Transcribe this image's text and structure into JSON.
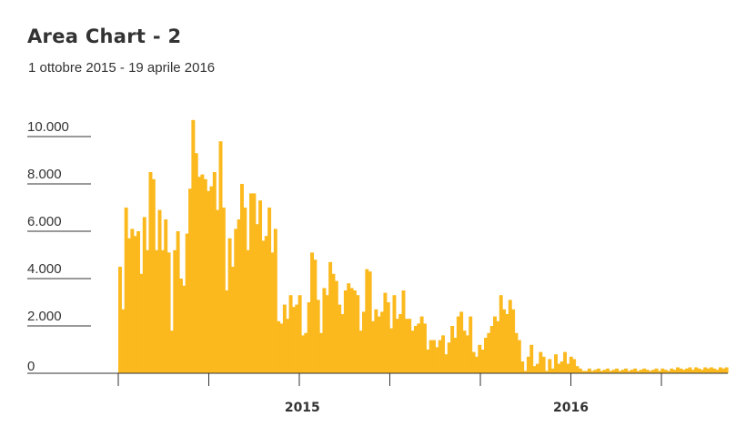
{
  "chart_data": {
    "type": "bar",
    "title": "Area Chart - 2",
    "subtitle": "1 ottobre 2015 - 19 aprile 2016",
    "color": "#FBB91E",
    "axis_color": "#333333",
    "ylim": [
      0,
      10000
    ],
    "y_ticks": [
      {
        "value": 0,
        "label": "0"
      },
      {
        "value": 2000,
        "label": "2.000"
      },
      {
        "value": 4000,
        "label": "4.000"
      },
      {
        "value": 6000,
        "label": "6.000"
      },
      {
        "value": 8000,
        "label": "8.000"
      },
      {
        "value": 10000,
        "label": "10.000"
      }
    ],
    "x_range": [
      "2015-10-01",
      "2016-04-19"
    ],
    "x_labels": [
      {
        "date": "2015-12-01",
        "label": "2015"
      },
      {
        "date": "2016-02-28",
        "label": "2016"
      }
    ],
    "x_ticks": [
      "2015-10-01",
      "2015-10-31",
      "2015-11-30",
      "2015-12-30",
      "2016-01-29",
      "2016-02-28",
      "2016-03-29"
    ],
    "grid": false,
    "legend": "none",
    "values": [
      4500,
      2700,
      7000,
      5700,
      6100,
      5800,
      6000,
      4200,
      6600,
      5200,
      8500,
      8200,
      5200,
      6900,
      5200,
      6500,
      5100,
      1800,
      5200,
      6000,
      4000,
      3700,
      5900,
      7800,
      10700,
      9300,
      8300,
      8400,
      8200,
      7700,
      7900,
      8500,
      6900,
      9800,
      7000,
      3500,
      5700,
      4500,
      6100,
      6500,
      8000,
      7000,
      5200,
      7600,
      7600,
      6300,
      7300,
      5600,
      5800,
      7000,
      5100,
      6100,
      2200,
      2100,
      2900,
      2300,
      3300,
      2800,
      2900,
      3300,
      1600,
      1700,
      3000,
      5100,
      4800,
      3100,
      1700,
      3600,
      3300,
      4700,
      4200,
      3900,
      2900,
      2500,
      3500,
      3800,
      3600,
      3500,
      3300,
      1800,
      2600,
      4400,
      4300,
      2200,
      2700,
      2400,
      2600,
      3400,
      3000,
      1900,
      3300,
      2300,
      2500,
      3500,
      2300,
      2300,
      1800,
      2000,
      2100,
      2400,
      2100,
      1000,
      1400,
      1400,
      1100,
      1400,
      1600,
      800,
      1300,
      2000,
      1500,
      2400,
      2600,
      1800,
      1600,
      2400,
      900,
      700,
      1200,
      1000,
      1500,
      1700,
      2000,
      2400,
      2200,
      3300,
      2700,
      2500,
      3100,
      2700,
      1700,
      1400,
      500,
      100,
      700,
      1200,
      300,
      400,
      900,
      700,
      100,
      600,
      200,
      800,
      400,
      500,
      900,
      400,
      700,
      600,
      300,
      200,
      100,
      100,
      200,
      100,
      150,
      200,
      100,
      150,
      200,
      100,
      150,
      200,
      100,
      150,
      200,
      100,
      150,
      200,
      100,
      150,
      200,
      150,
      100,
      150,
      200,
      100,
      200,
      150,
      100,
      200,
      150,
      250,
      200,
      150,
      200,
      250,
      150,
      250,
      200,
      150,
      250,
      200,
      250,
      200,
      150,
      250,
      200,
      250
    ]
  }
}
